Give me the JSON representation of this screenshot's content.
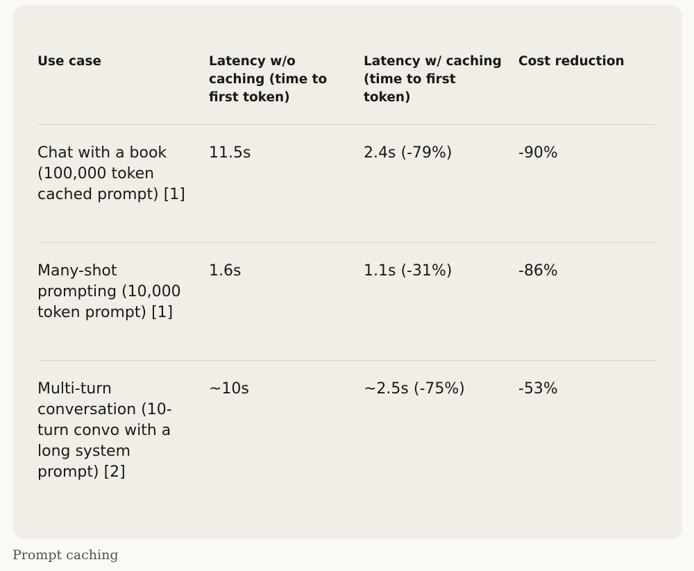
{
  "table": {
    "headers": [
      "Use case",
      "Latency w/o caching (time to first token)",
      "Latency w/ caching (time to first token)",
      "Cost reduction"
    ],
    "rows": [
      {
        "use_case": "Chat with a book (100,000 token cached prompt) [1]",
        "latency_without": "11.5s",
        "latency_with": "2.4s (-79%)",
        "cost_reduction": "-90%"
      },
      {
        "use_case": "Many-shot prompting (10,000 token prompt) [1]",
        "latency_without": "1.6s",
        "latency_with": "1.1s (-31%)",
        "cost_reduction": "-86%"
      },
      {
        "use_case": "Multi-turn conversation (10-turn convo with a long system prompt) [2]",
        "latency_without": "~10s",
        "latency_with": "~2.5s (-75%)",
        "cost_reduction": "-53%"
      }
    ]
  },
  "caption": "Prompt caching"
}
